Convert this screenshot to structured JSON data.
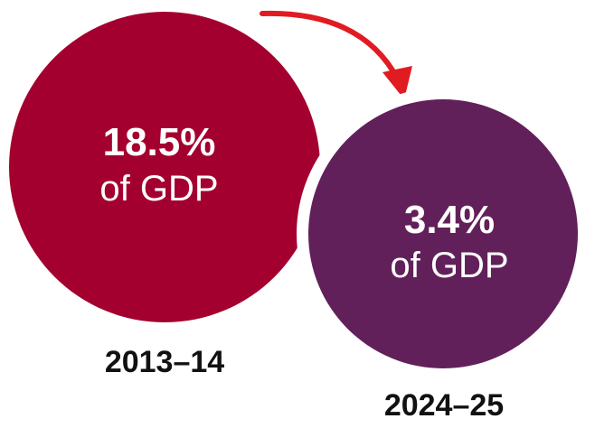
{
  "chart_data": {
    "type": "bubble",
    "unit": "of GDP",
    "items": [
      {
        "period": "2013–14",
        "value": 18.5,
        "value_label": "18.5%",
        "color": "#a3002f"
      },
      {
        "period": "2024–25",
        "value": 3.4,
        "value_label": "3.4%",
        "color": "#62205a"
      }
    ],
    "arrow": {
      "color": "#e11b22",
      "direction": "from-first-to-second"
    },
    "background": "#ffffff"
  }
}
